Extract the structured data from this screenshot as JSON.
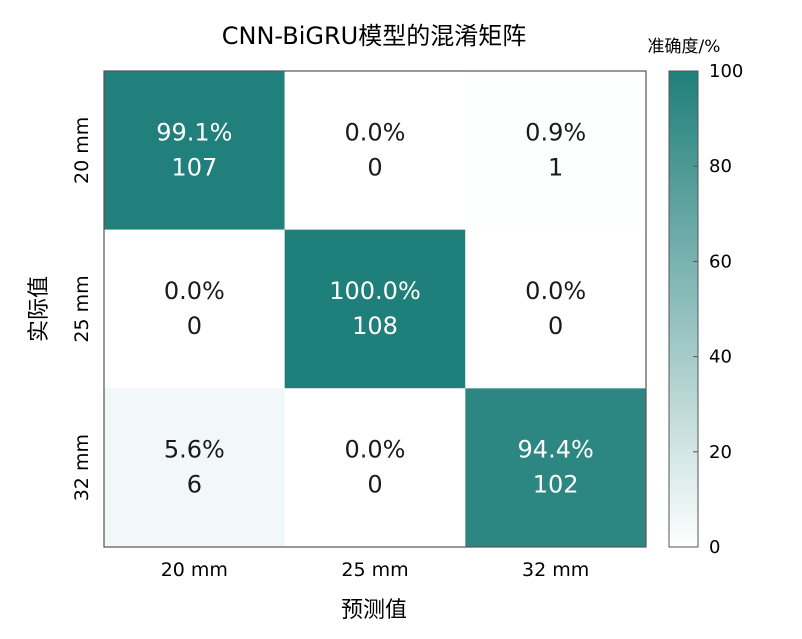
{
  "chart_data": {
    "type": "heatmap",
    "title": "CNN-BiGRU模型的混淆矩阵",
    "xlabel": "预测值",
    "ylabel": "实际值",
    "x_categories": [
      "20 mm",
      "25 mm",
      "32 mm"
    ],
    "y_categories": [
      "20 mm",
      "25 mm",
      "32 mm"
    ],
    "values_percent": [
      [
        99.1,
        0.0,
        0.9
      ],
      [
        0.0,
        100.0,
        0.0
      ],
      [
        5.6,
        0.0,
        94.4
      ]
    ],
    "percent_labels": [
      [
        "99.1%",
        "0.0%",
        "0.9%"
      ],
      [
        "0.0%",
        "100.0%",
        "0.0%"
      ],
      [
        "5.6%",
        "0.0%",
        "94.4%"
      ]
    ],
    "counts": [
      [
        107,
        0,
        1
      ],
      [
        0,
        108,
        0
      ],
      [
        6,
        0,
        102
      ]
    ],
    "colorbar": {
      "title": "准确度/%",
      "range": [
        0,
        100
      ],
      "ticks": [
        0,
        20,
        40,
        60,
        80,
        100
      ]
    },
    "colors": {
      "high": "#1f7f7a",
      "low": "#ffffff",
      "text_on_dark": "#ffffff",
      "text_on_light": "#1a1a1a"
    }
  }
}
